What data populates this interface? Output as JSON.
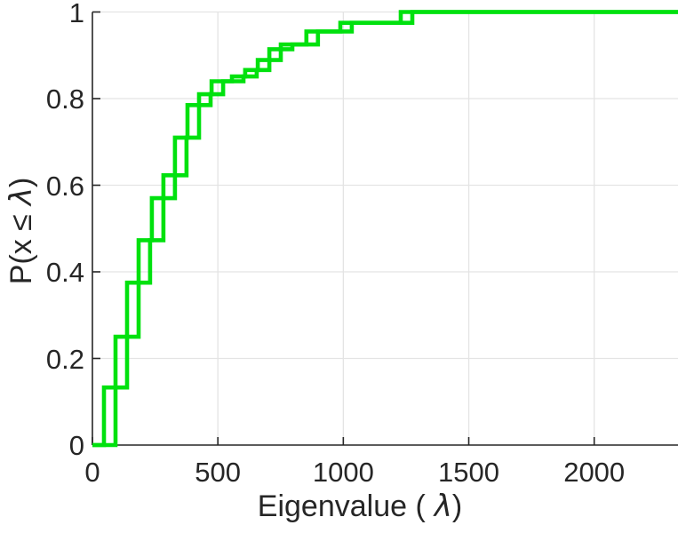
{
  "chart_data": {
    "type": "line",
    "subtype": "empirical-cdf-staircase",
    "title": "",
    "xlabel": {
      "pre": "Eigenvalue (",
      "symbol": "λ",
      "post": ")"
    },
    "ylabel": {
      "pre": "P(x ≤",
      "symbol": "λ",
      "post": ")"
    },
    "xlim": [
      0,
      2334
    ],
    "ylim": [
      0,
      1
    ],
    "xticks": [
      0,
      500,
      1000,
      1500,
      2000
    ],
    "xtick_labels": [
      "0",
      "500",
      "1000",
      "1500",
      "2000"
    ],
    "yticks": [
      0,
      0.2,
      0.4,
      0.6,
      0.8,
      1
    ],
    "ytick_labels": [
      "0",
      "0.2",
      "0.4",
      "0.6",
      "0.8",
      "1"
    ],
    "grid": true,
    "legend": null,
    "line_color": "#00e10e",
    "axis_color": "#262626",
    "grid_color": "#e4e4e4",
    "series": [
      {
        "name": "ecdf-stairs-primary",
        "step_x": [
          46,
          92,
          138,
          184,
          237,
          283,
          329,
          379,
          425,
          475,
          556,
          609,
          659,
          705,
          751,
          853,
          988,
          1229
        ],
        "step_y": [
          0.133,
          0.25,
          0.375,
          0.473,
          0.57,
          0.623,
          0.71,
          0.785,
          0.81,
          0.84,
          0.851,
          0.866,
          0.889,
          0.914,
          0.925,
          0.955,
          0.975,
          1.0
        ]
      },
      {
        "name": "ecdf-stairs-secondary",
        "step_x": [
          92,
          138,
          184,
          230,
          283,
          329,
          375,
          425,
          471,
          521,
          602,
          655,
          705,
          751,
          797,
          899,
          1034,
          1275
        ],
        "step_y": [
          0.133,
          0.25,
          0.375,
          0.473,
          0.57,
          0.623,
          0.71,
          0.785,
          0.81,
          0.84,
          0.851,
          0.866,
          0.889,
          0.914,
          0.925,
          0.955,
          0.975,
          1.0
        ]
      }
    ]
  }
}
